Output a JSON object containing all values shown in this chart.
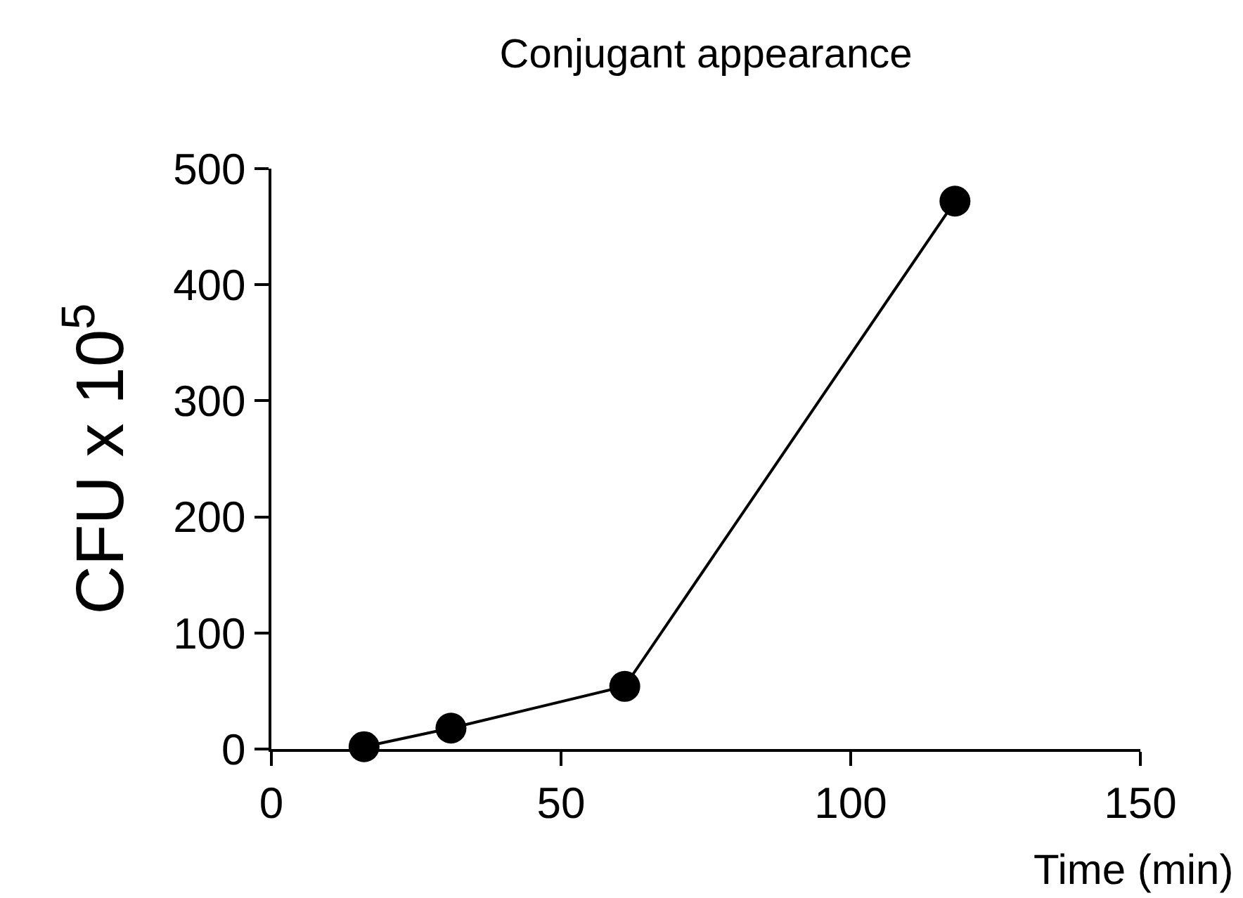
{
  "chart_data": {
    "type": "line",
    "title": "Conjugant appearance",
    "xlabel": "Time (min)",
    "ylabel": "CFU x 10$^{5}$",
    "x": [
      16,
      31,
      61,
      118
    ],
    "series": [
      {
        "color": "#000000",
        "values": [
          2,
          18,
          54,
          472
        ]
      }
    ],
    "xlim": [
      0,
      150
    ],
    "xticks": [
      0,
      50,
      100,
      150
    ],
    "ylim": [
      0,
      500
    ],
    "yticks": [
      0,
      100,
      200,
      300,
      400,
      500
    ],
    "marker": "circle",
    "line_style": "solid"
  }
}
